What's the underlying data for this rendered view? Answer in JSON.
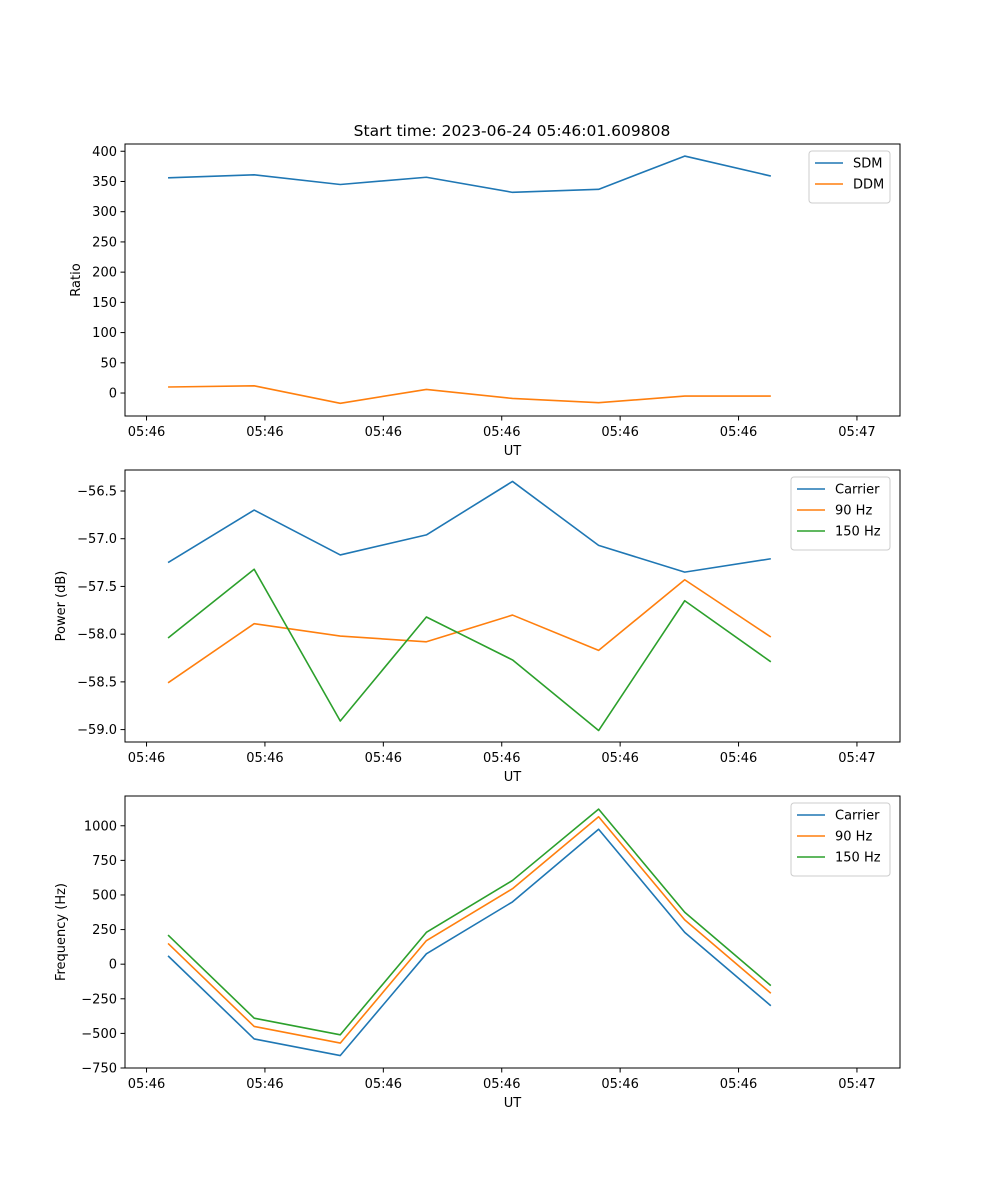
{
  "title": "Start time: 2023-06-24 05:46:01.609808",
  "x_tick_labels": [
    "05:46",
    "05:46",
    "05:46",
    "05:46",
    "05:46",
    "05:46",
    "05:47"
  ],
  "chart_data": [
    {
      "type": "line",
      "title": "Start time: 2023-06-24 05:46:01.609808",
      "xlabel": "UT",
      "ylabel": "Ratio",
      "x": [
        1,
        2,
        3,
        4,
        5,
        6,
        7,
        8
      ],
      "xlim": [
        0.5,
        9.5
      ],
      "ylim": [
        -38,
        412
      ],
      "yticks": [
        0,
        50,
        100,
        150,
        200,
        250,
        300,
        350,
        400
      ],
      "ytick_labels": [
        "0",
        "50",
        "100",
        "150",
        "200",
        "250",
        "300",
        "350",
        "400"
      ],
      "legend": "top-right",
      "series": [
        {
          "name": "SDM",
          "color": "#1f77b4",
          "values": [
            356,
            361,
            345,
            357,
            332,
            337,
            392,
            359
          ]
        },
        {
          "name": "DDM",
          "color": "#ff7f0e",
          "values": [
            10,
            12,
            -17,
            6,
            -9,
            -16,
            -5,
            -5
          ]
        }
      ]
    },
    {
      "type": "line",
      "xlabel": "UT",
      "ylabel": "Power (dB)",
      "x": [
        1,
        2,
        3,
        4,
        5,
        6,
        7,
        8
      ],
      "xlim": [
        0.5,
        9.5
      ],
      "ylim": [
        -59.13,
        -56.28
      ],
      "yticks": [
        -59.0,
        -58.5,
        -58.0,
        -57.5,
        -57.0,
        -56.5
      ],
      "ytick_labels": [
        "−59.0",
        "−58.5",
        "−58.0",
        "−57.5",
        "−57.0",
        "−56.5"
      ],
      "legend": "top-right",
      "series": [
        {
          "name": "Carrier",
          "color": "#1f77b4",
          "values": [
            -57.25,
            -56.7,
            -57.17,
            -56.96,
            -56.4,
            -57.07,
            -57.35,
            -57.21
          ]
        },
        {
          "name": "90 Hz",
          "color": "#ff7f0e",
          "values": [
            -58.51,
            -57.89,
            -58.02,
            -58.08,
            -57.8,
            -58.17,
            -57.43,
            -58.03
          ]
        },
        {
          "name": "150 Hz",
          "color": "#2ca02c",
          "values": [
            -58.04,
            -57.32,
            -58.91,
            -57.82,
            -58.27,
            -59.01,
            -57.65,
            -58.29
          ]
        }
      ]
    },
    {
      "type": "line",
      "xlabel": "UT",
      "ylabel": "Frequency (Hz)",
      "x": [
        1,
        2,
        3,
        4,
        5,
        6,
        7,
        8
      ],
      "xlim": [
        0.5,
        9.5
      ],
      "ylim": [
        -750,
        1215
      ],
      "yticks": [
        -750,
        -500,
        -250,
        0,
        250,
        500,
        750,
        1000
      ],
      "ytick_labels": [
        "−750",
        "−500",
        "−250",
        "0",
        "250",
        "500",
        "750",
        "1000"
      ],
      "legend": "top-right",
      "series": [
        {
          "name": "Carrier",
          "color": "#1f77b4",
          "values": [
            60,
            -540,
            -660,
            75,
            450,
            975,
            230,
            -300
          ]
        },
        {
          "name": "90 Hz",
          "color": "#ff7f0e",
          "values": [
            150,
            -450,
            -570,
            170,
            545,
            1065,
            320,
            -210
          ]
        },
        {
          "name": "150 Hz",
          "color": "#2ca02c",
          "values": [
            210,
            -390,
            -510,
            230,
            605,
            1120,
            375,
            -155
          ]
        }
      ]
    }
  ]
}
